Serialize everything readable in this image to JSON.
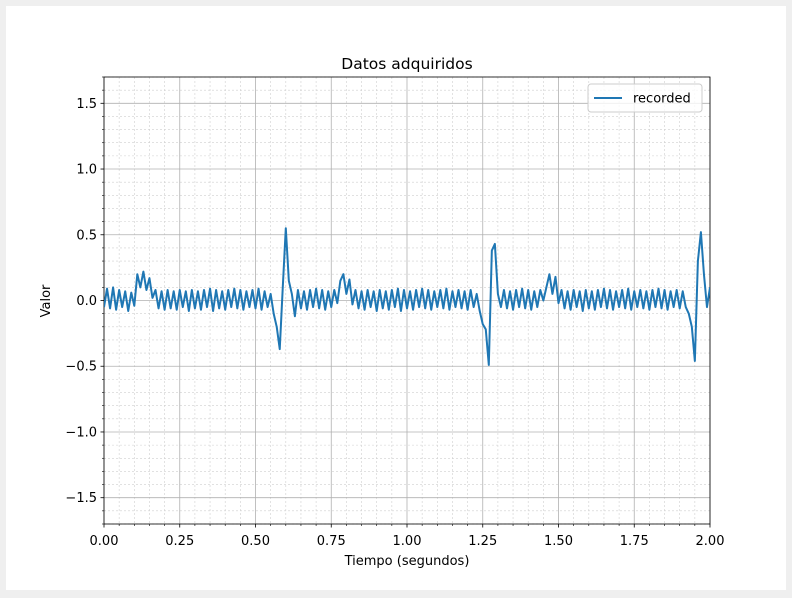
{
  "chart_data": {
    "type": "line",
    "title": "Datos adquiridos",
    "x_label": "Tiempo (segundos)",
    "y_label": "Valor",
    "x": [
      0,
      0.01,
      0.02,
      0.03,
      0.04,
      0.05,
      0.06,
      0.07,
      0.08,
      0.09,
      0.1,
      0.11,
      0.12,
      0.13,
      0.14,
      0.15,
      0.16,
      0.17,
      0.18,
      0.19,
      0.2,
      0.21,
      0.22,
      0.23,
      0.24,
      0.25,
      0.26,
      0.27,
      0.28,
      0.29,
      0.3,
      0.31,
      0.32,
      0.33,
      0.34,
      0.35,
      0.36,
      0.37,
      0.38,
      0.39,
      0.4,
      0.41,
      0.42,
      0.43,
      0.44,
      0.45,
      0.46,
      0.47,
      0.48,
      0.49,
      0.5,
      0.51,
      0.52,
      0.53,
      0.54,
      0.55,
      0.56,
      0.57,
      0.58,
      0.59,
      0.6,
      0.61,
      0.62,
      0.63,
      0.64,
      0.65,
      0.66,
      0.67,
      0.68,
      0.69,
      0.7,
      0.71,
      0.72,
      0.73,
      0.74,
      0.75,
      0.76,
      0.77,
      0.78,
      0.79,
      0.8,
      0.81,
      0.82,
      0.83,
      0.84,
      0.85,
      0.86,
      0.87,
      0.88,
      0.89,
      0.9,
      0.91,
      0.92,
      0.93,
      0.94,
      0.95,
      0.96,
      0.97,
      0.98,
      0.99,
      1,
      1.01,
      1.02,
      1.03,
      1.04,
      1.05,
      1.06,
      1.07,
      1.08,
      1.09,
      1.1,
      1.11,
      1.12,
      1.13,
      1.14,
      1.15,
      1.16,
      1.17,
      1.18,
      1.19,
      1.2,
      1.21,
      1.22,
      1.23,
      1.24,
      1.25,
      1.26,
      1.27,
      1.28,
      1.29,
      1.3,
      1.31,
      1.32,
      1.33,
      1.34,
      1.35,
      1.36,
      1.37,
      1.38,
      1.39,
      1.4,
      1.41,
      1.42,
      1.43,
      1.44,
      1.45,
      1.46,
      1.47,
      1.48,
      1.49,
      1.5,
      1.51,
      1.52,
      1.53,
      1.54,
      1.55,
      1.56,
      1.57,
      1.58,
      1.59,
      1.6,
      1.61,
      1.62,
      1.63,
      1.64,
      1.65,
      1.66,
      1.67,
      1.68,
      1.69,
      1.7,
      1.71,
      1.72,
      1.73,
      1.74,
      1.75,
      1.76,
      1.77,
      1.78,
      1.79,
      1.8,
      1.81,
      1.82,
      1.83,
      1.84,
      1.85,
      1.86,
      1.87,
      1.88,
      1.89,
      1.9,
      1.91,
      1.92,
      1.93,
      1.94,
      1.95,
      1.96,
      1.97,
      1.98,
      1.99,
      2
    ],
    "series": [
      {
        "name": "recorded",
        "color": "#1f77b4",
        "values": [
          -0.05,
          0.09,
          -0.06,
          0.1,
          -0.07,
          0.08,
          -0.05,
          0.07,
          -0.08,
          0.06,
          -0.04,
          0.2,
          0.1,
          0.22,
          0.08,
          0.17,
          0.02,
          0.08,
          -0.06,
          0.07,
          -0.07,
          0.08,
          -0.06,
          0.07,
          -0.07,
          0.08,
          -0.05,
          0.07,
          -0.08,
          0.08,
          -0.06,
          0.07,
          -0.07,
          0.08,
          -0.05,
          0.09,
          -0.08,
          0.08,
          -0.06,
          0.07,
          -0.07,
          0.08,
          -0.05,
          0.09,
          -0.06,
          0.08,
          -0.07,
          0.07,
          -0.05,
          0.08,
          -0.06,
          0.09,
          -0.07,
          0.07,
          -0.05,
          0.05,
          -0.1,
          -0.2,
          -0.37,
          0.1,
          0.55,
          0.15,
          0.05,
          -0.12,
          0.08,
          -0.06,
          0.07,
          -0.07,
          0.08,
          -0.05,
          0.09,
          -0.06,
          0.08,
          -0.07,
          0.07,
          -0.05,
          0.08,
          -0.02,
          0.15,
          0.2,
          0.05,
          0.16,
          -0.03,
          0.08,
          -0.06,
          0.07,
          -0.07,
          0.08,
          -0.05,
          0.07,
          -0.08,
          0.08,
          -0.06,
          0.07,
          -0.07,
          0.08,
          -0.05,
          0.09,
          -0.08,
          0.08,
          -0.06,
          0.07,
          -0.07,
          0.08,
          -0.05,
          0.09,
          -0.06,
          0.08,
          -0.07,
          0.07,
          -0.05,
          0.08,
          -0.06,
          0.09,
          -0.07,
          0.07,
          -0.05,
          0.08,
          -0.06,
          0.07,
          -0.07,
          0.08,
          -0.05,
          0.05,
          -0.08,
          -0.18,
          -0.22,
          -0.49,
          0.38,
          0.43,
          0.05,
          -0.05,
          0.08,
          -0.06,
          0.07,
          -0.07,
          0.08,
          -0.05,
          0.09,
          -0.06,
          0.08,
          -0.07,
          0.07,
          -0.05,
          0.08,
          0,
          0.1,
          0.2,
          0.05,
          0.18,
          -0.02,
          0.08,
          -0.06,
          0.07,
          -0.07,
          0.08,
          -0.05,
          0.07,
          -0.08,
          0.08,
          -0.06,
          0.07,
          -0.07,
          0.08,
          -0.05,
          0.09,
          -0.06,
          0.08,
          -0.07,
          0.07,
          -0.05,
          0.08,
          -0.06,
          0.09,
          -0.07,
          0.07,
          -0.05,
          0.08,
          -0.06,
          0.07,
          -0.07,
          0.08,
          -0.05,
          0.09,
          -0.06,
          0.08,
          -0.07,
          0.07,
          -0.05,
          0.08,
          -0.06,
          0.07,
          -0.05,
          -0.1,
          -0.2,
          -0.46,
          0.3,
          0.52,
          0.2,
          -0.05,
          0.1
        ]
      }
    ],
    "xlim": [
      0,
      2
    ],
    "ylim": [
      -1.7,
      1.7
    ],
    "xticks": [
      {
        "value": 0,
        "label": "0.00"
      },
      0.25,
      {
        "value": 0.5,
        "label": "0.50"
      },
      0.75,
      {
        "value": 1,
        "label": "1.00"
      },
      1.25,
      {
        "value": 1.5,
        "label": "1.50"
      },
      1.75,
      {
        "value": 2,
        "label": "2.00"
      }
    ],
    "yticks": [
      {
        "value": -1.5,
        "label": "−1.5"
      },
      {
        "value": -1,
        "label": "−1.0"
      },
      {
        "value": -0.5,
        "label": "−0.5"
      },
      {
        "value": 0,
        "label": "0.0"
      },
      0.5,
      {
        "value": 1,
        "label": "1.0"
      },
      1.5
    ],
    "grid": true,
    "minor_grid": true,
    "legend": "upper right"
  }
}
